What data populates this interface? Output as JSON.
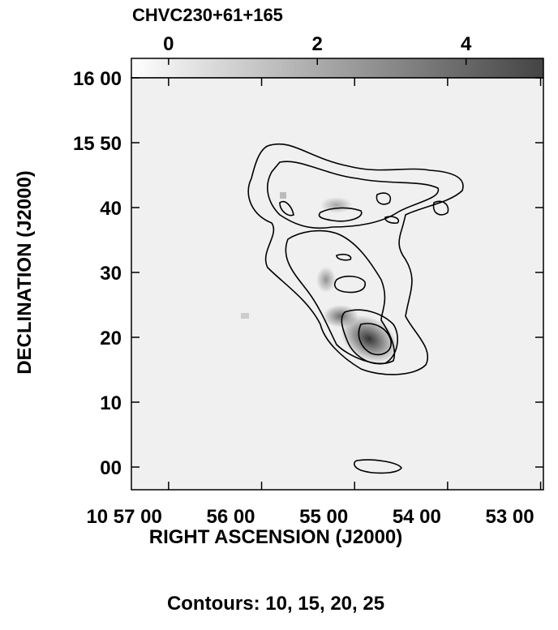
{
  "chart_data": {
    "type": "contour-map",
    "title": "CHVC230+61+165",
    "x_label": "RIGHT ASCENSION (J2000)",
    "y_label": "DECLINATION (J2000)",
    "note": "Contours: 10, 15, 20, 25",
    "xlim": [
      57.4,
      52.97
    ],
    "xticks": [
      {
        "value": 57,
        "label": "10 57 00"
      },
      {
        "value": 56,
        "label": "56 00"
      },
      {
        "value": 55,
        "label": "55 00"
      },
      {
        "value": 54,
        "label": "54 00"
      },
      {
        "value": 53,
        "label": "53 00"
      }
    ],
    "ylim": [
      -3.5,
      60
    ],
    "yticks": [
      {
        "value": 60,
        "label": "16 00"
      },
      {
        "value": 50,
        "label": "15 50"
      },
      40,
      30,
      20,
      10,
      {
        "value": 0,
        "label": "00"
      }
    ],
    "colorbar_lim": [
      -0.5,
      5.04
    ],
    "colorbar_ticks": [
      0,
      2,
      4
    ]
  }
}
